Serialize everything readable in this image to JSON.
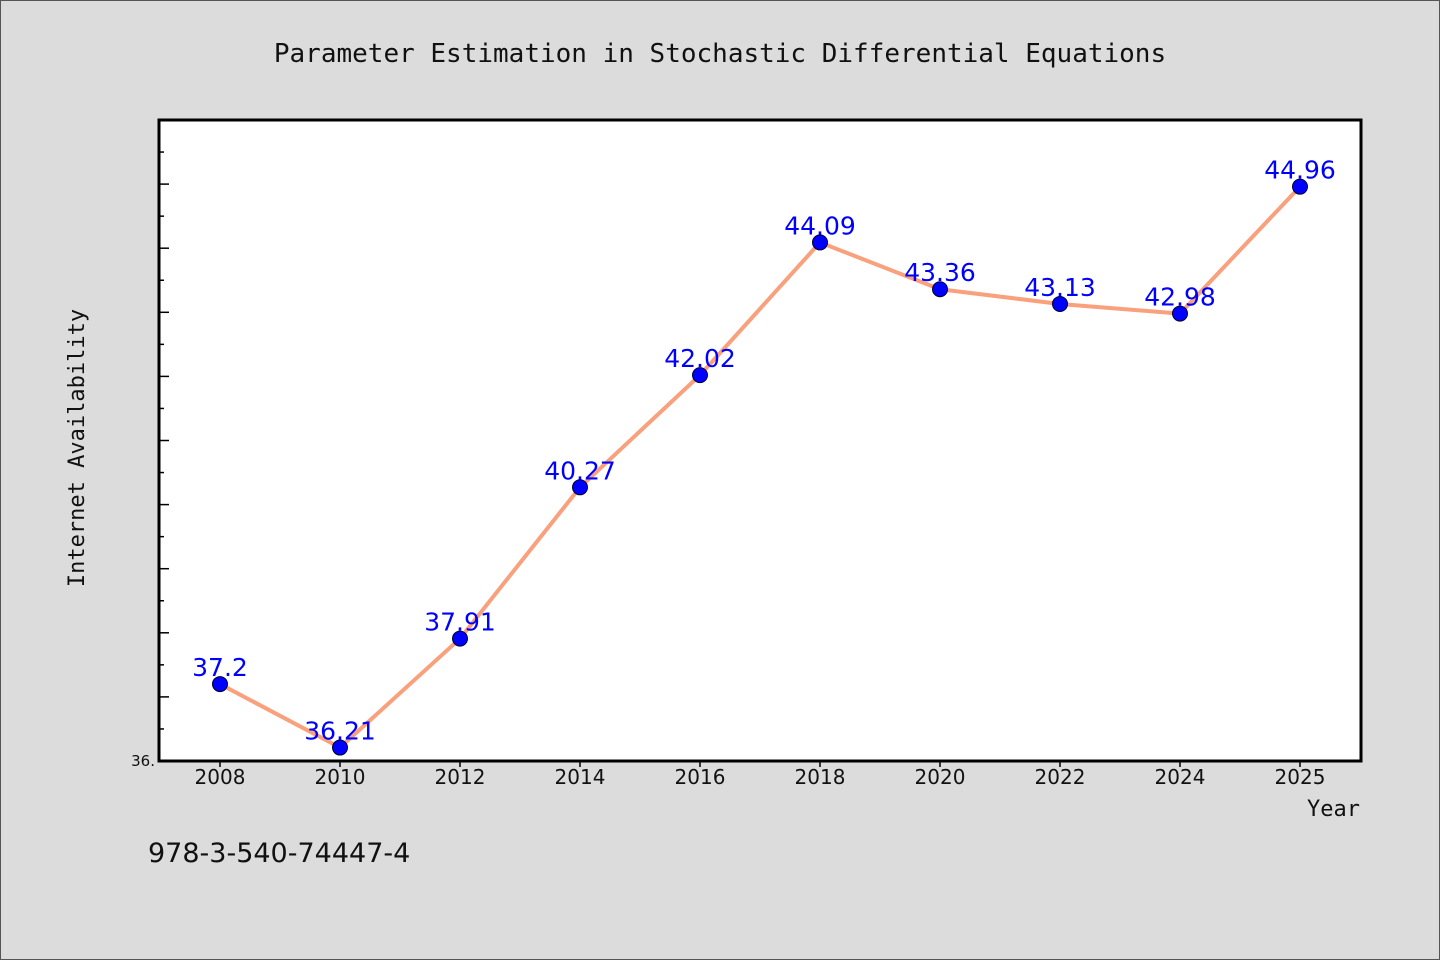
{
  "chart_data": {
    "type": "line",
    "title": "Parameter Estimation in Stochastic Differential Equations",
    "xlabel": "Year",
    "ylabel": "Internet Availability",
    "categories": [
      "2008",
      "2010",
      "2012",
      "2014",
      "2016",
      "2018",
      "2020",
      "2022",
      "2024",
      "2025"
    ],
    "series": [
      {
        "values": [
          37.2,
          36.21,
          37.91,
          40.27,
          42.02,
          44.09,
          43.36,
          43.13,
          42.98,
          44.96
        ],
        "line_color": "#f9a07c",
        "marker_color": "#0000ff",
        "label_color": "#0000ff"
      }
    ],
    "y_min_tick_label": "36.",
    "ylim": [
      36.0,
      46.0
    ],
    "grid": false,
    "plot_background": "#ffffff",
    "page_background": "#dcdcdc"
  },
  "footer": {
    "isbn": "978-3-540-74447-4"
  }
}
